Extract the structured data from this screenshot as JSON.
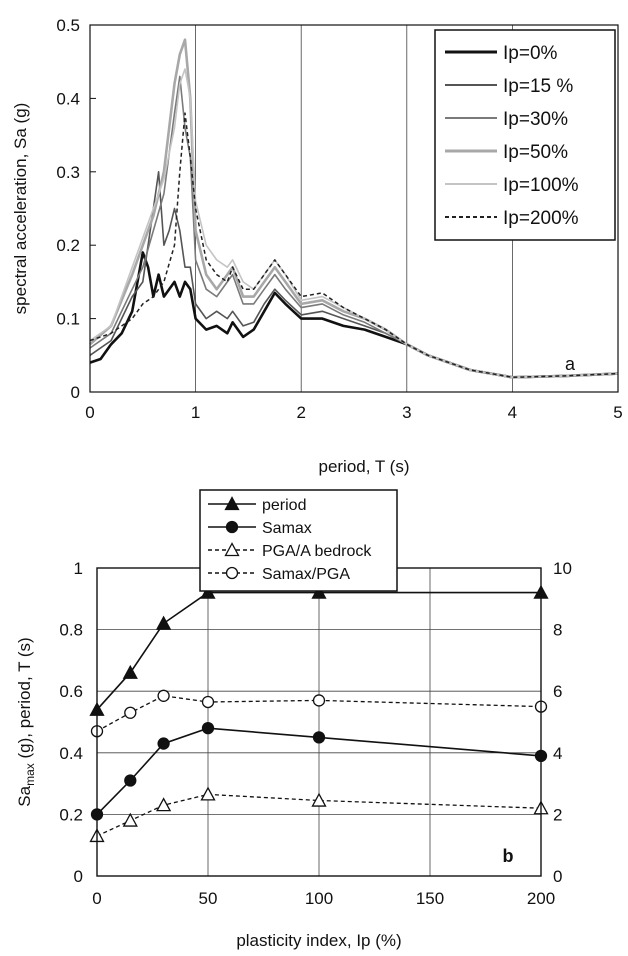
{
  "chart_data": [
    {
      "id": "a",
      "type": "line",
      "panel_label": "a",
      "title": "",
      "xlabel": "period, T (s)",
      "ylabel": "spectral acceleration, Sa (g)",
      "xlim": [
        0,
        5
      ],
      "ylim": [
        0,
        0.5
      ],
      "xticks": [
        "0",
        "1",
        "2",
        "3",
        "4",
        "5"
      ],
      "yticks": [
        "0",
        "0.1",
        "0.2",
        "0.3",
        "0.4",
        "0.5"
      ],
      "grid": "vertical",
      "legend_position": "top-right",
      "series": [
        {
          "name": "Ip=0%",
          "color": "#111111",
          "style": "solid-thick",
          "points": [
            [
              0,
              0.04
            ],
            [
              0.1,
              0.045
            ],
            [
              0.2,
              0.065
            ],
            [
              0.3,
              0.08
            ],
            [
              0.4,
              0.11
            ],
            [
              0.5,
              0.19
            ],
            [
              0.55,
              0.17
            ],
            [
              0.6,
              0.13
            ],
            [
              0.65,
              0.16
            ],
            [
              0.7,
              0.13
            ],
            [
              0.75,
              0.14
            ],
            [
              0.8,
              0.15
            ],
            [
              0.85,
              0.13
            ],
            [
              0.9,
              0.15
            ],
            [
              0.95,
              0.14
            ],
            [
              1.0,
              0.1
            ],
            [
              1.1,
              0.085
            ],
            [
              1.2,
              0.09
            ],
            [
              1.3,
              0.08
            ],
            [
              1.35,
              0.095
            ],
            [
              1.45,
              0.075
            ],
            [
              1.55,
              0.085
            ],
            [
              1.65,
              0.11
            ],
            [
              1.75,
              0.135
            ],
            [
              1.85,
              0.12
            ],
            [
              2.0,
              0.1
            ],
            [
              2.2,
              0.1
            ],
            [
              2.4,
              0.09
            ],
            [
              2.6,
              0.085
            ],
            [
              2.8,
              0.075
            ],
            [
              3.0,
              0.065
            ],
            [
              3.2,
              0.05
            ],
            [
              3.4,
              0.04
            ],
            [
              3.6,
              0.03
            ],
            [
              3.8,
              0.025
            ],
            [
              4.0,
              0.02
            ],
            [
              4.5,
              0.022
            ],
            [
              5.0,
              0.025
            ]
          ]
        },
        {
          "name": "Ip=15 %",
          "color": "#555555",
          "style": "solid",
          "points": [
            [
              0,
              0.05
            ],
            [
              0.2,
              0.07
            ],
            [
              0.4,
              0.13
            ],
            [
              0.5,
              0.15
            ],
            [
              0.6,
              0.25
            ],
            [
              0.65,
              0.3
            ],
            [
              0.7,
              0.2
            ],
            [
              0.75,
              0.22
            ],
            [
              0.8,
              0.25
            ],
            [
              0.85,
              0.22
            ],
            [
              0.9,
              0.17
            ],
            [
              0.95,
              0.17
            ],
            [
              1.0,
              0.12
            ],
            [
              1.1,
              0.1
            ],
            [
              1.2,
              0.11
            ],
            [
              1.3,
              0.1
            ],
            [
              1.35,
              0.11
            ],
            [
              1.45,
              0.09
            ],
            [
              1.55,
              0.095
            ],
            [
              1.65,
              0.12
            ],
            [
              1.75,
              0.14
            ],
            [
              1.85,
              0.125
            ],
            [
              2.0,
              0.105
            ],
            [
              2.2,
              0.11
            ],
            [
              2.4,
              0.1
            ],
            [
              2.6,
              0.09
            ],
            [
              2.8,
              0.08
            ],
            [
              3.0,
              0.065
            ],
            [
              3.2,
              0.05
            ],
            [
              3.4,
              0.04
            ],
            [
              3.6,
              0.03
            ],
            [
              3.8,
              0.025
            ],
            [
              4.0,
              0.02
            ],
            [
              4.5,
              0.022
            ],
            [
              5.0,
              0.025
            ]
          ]
        },
        {
          "name": "Ip=30%",
          "color": "#7a7a7a",
          "style": "solid",
          "points": [
            [
              0,
              0.06
            ],
            [
              0.2,
              0.08
            ],
            [
              0.4,
              0.14
            ],
            [
              0.5,
              0.17
            ],
            [
              0.6,
              0.22
            ],
            [
              0.7,
              0.27
            ],
            [
              0.8,
              0.38
            ],
            [
              0.85,
              0.43
            ],
            [
              0.9,
              0.36
            ],
            [
              0.95,
              0.32
            ],
            [
              1.0,
              0.18
            ],
            [
              1.1,
              0.14
            ],
            [
              1.2,
              0.13
            ],
            [
              1.3,
              0.15
            ],
            [
              1.35,
              0.16
            ],
            [
              1.45,
              0.12
            ],
            [
              1.55,
              0.12
            ],
            [
              1.65,
              0.14
            ],
            [
              1.75,
              0.16
            ],
            [
              1.85,
              0.14
            ],
            [
              2.0,
              0.115
            ],
            [
              2.2,
              0.12
            ],
            [
              2.4,
              0.105
            ],
            [
              2.6,
              0.095
            ],
            [
              2.8,
              0.08
            ],
            [
              3.0,
              0.065
            ],
            [
              3.2,
              0.05
            ],
            [
              3.4,
              0.04
            ],
            [
              3.6,
              0.03
            ],
            [
              3.8,
              0.025
            ],
            [
              4.0,
              0.02
            ],
            [
              4.5,
              0.022
            ],
            [
              5.0,
              0.025
            ]
          ]
        },
        {
          "name": "Ip=50%",
          "color": "#a8a8a8",
          "style": "solid-thick",
          "points": [
            [
              0,
              0.065
            ],
            [
              0.2,
              0.09
            ],
            [
              0.4,
              0.16
            ],
            [
              0.5,
              0.2
            ],
            [
              0.6,
              0.24
            ],
            [
              0.7,
              0.3
            ],
            [
              0.8,
              0.42
            ],
            [
              0.85,
              0.46
            ],
            [
              0.9,
              0.48
            ],
            [
              0.95,
              0.4
            ],
            [
              1.0,
              0.22
            ],
            [
              1.1,
              0.16
            ],
            [
              1.2,
              0.14
            ],
            [
              1.3,
              0.16
            ],
            [
              1.35,
              0.17
            ],
            [
              1.45,
              0.13
            ],
            [
              1.55,
              0.13
            ],
            [
              1.65,
              0.15
            ],
            [
              1.75,
              0.17
            ],
            [
              1.85,
              0.15
            ],
            [
              2.0,
              0.12
            ],
            [
              2.2,
              0.125
            ],
            [
              2.4,
              0.11
            ],
            [
              2.6,
              0.1
            ],
            [
              2.8,
              0.085
            ],
            [
              3.0,
              0.065
            ],
            [
              3.2,
              0.05
            ],
            [
              3.4,
              0.04
            ],
            [
              3.6,
              0.03
            ],
            [
              3.8,
              0.025
            ],
            [
              4.0,
              0.02
            ],
            [
              4.5,
              0.022
            ],
            [
              5.0,
              0.025
            ]
          ]
        },
        {
          "name": "Ip=100%",
          "color": "#c4c4c4",
          "style": "solid",
          "points": [
            [
              0,
              0.07
            ],
            [
              0.2,
              0.09
            ],
            [
              0.4,
              0.17
            ],
            [
              0.5,
              0.21
            ],
            [
              0.6,
              0.25
            ],
            [
              0.7,
              0.29
            ],
            [
              0.8,
              0.36
            ],
            [
              0.85,
              0.42
            ],
            [
              0.9,
              0.44
            ],
            [
              0.95,
              0.4
            ],
            [
              1.0,
              0.26
            ],
            [
              1.1,
              0.2
            ],
            [
              1.2,
              0.18
            ],
            [
              1.3,
              0.17
            ],
            [
              1.35,
              0.18
            ],
            [
              1.45,
              0.15
            ],
            [
              1.55,
              0.14
            ],
            [
              1.65,
              0.16
            ],
            [
              1.75,
              0.18
            ],
            [
              1.85,
              0.16
            ],
            [
              2.0,
              0.125
            ],
            [
              2.2,
              0.13
            ],
            [
              2.4,
              0.115
            ],
            [
              2.6,
              0.1
            ],
            [
              2.8,
              0.085
            ],
            [
              3.0,
              0.065
            ],
            [
              3.2,
              0.05
            ],
            [
              3.4,
              0.04
            ],
            [
              3.6,
              0.03
            ],
            [
              3.8,
              0.025
            ],
            [
              4.0,
              0.02
            ],
            [
              4.5,
              0.022
            ],
            [
              5.0,
              0.025
            ]
          ]
        },
        {
          "name": "Ip=200%",
          "color": "#222222",
          "style": "dashed",
          "points": [
            [
              0,
              0.07
            ],
            [
              0.2,
              0.08
            ],
            [
              0.4,
              0.1
            ],
            [
              0.5,
              0.12
            ],
            [
              0.6,
              0.13
            ],
            [
              0.7,
              0.15
            ],
            [
              0.8,
              0.2
            ],
            [
              0.85,
              0.3
            ],
            [
              0.9,
              0.38
            ],
            [
              0.95,
              0.32
            ],
            [
              1.0,
              0.25
            ],
            [
              1.1,
              0.18
            ],
            [
              1.2,
              0.16
            ],
            [
              1.3,
              0.15
            ],
            [
              1.35,
              0.17
            ],
            [
              1.45,
              0.14
            ],
            [
              1.55,
              0.14
            ],
            [
              1.65,
              0.16
            ],
            [
              1.75,
              0.18
            ],
            [
              1.85,
              0.16
            ],
            [
              2.0,
              0.13
            ],
            [
              2.2,
              0.135
            ],
            [
              2.4,
              0.115
            ],
            [
              2.6,
              0.1
            ],
            [
              2.8,
              0.085
            ],
            [
              3.0,
              0.065
            ],
            [
              3.2,
              0.05
            ],
            [
              3.4,
              0.04
            ],
            [
              3.6,
              0.03
            ],
            [
              3.8,
              0.025
            ],
            [
              4.0,
              0.02
            ],
            [
              4.5,
              0.022
            ],
            [
              5.0,
              0.025
            ]
          ]
        }
      ]
    },
    {
      "id": "b",
      "type": "line",
      "panel_label": "b",
      "title": "",
      "xlabel": "plasticity index, Ip (%)",
      "ylabel": "Sa_max (g), period, T (s)",
      "ylabel_main": "Sa",
      "ylabel_sub": "max",
      "ylabel_rest": " (g), period, T (s)",
      "xlim": [
        0,
        200
      ],
      "ylim": [
        0,
        1
      ],
      "y2lim": [
        0,
        10
      ],
      "xticks": [
        "0",
        "50",
        "100",
        "150",
        "200"
      ],
      "yticks": [
        "0",
        "0.2",
        "0.4",
        "0.6",
        "0.8",
        "1"
      ],
      "y2ticks": [
        "0",
        "2",
        "4",
        "6",
        "8",
        "10"
      ],
      "grid": true,
      "legend_position": "top-center (above plot)",
      "series": [
        {
          "name": "period",
          "axis": "left",
          "marker": "filled-triangle",
          "style": "solid",
          "x": [
            0,
            15,
            30,
            50,
            100,
            200
          ],
          "values": [
            0.54,
            0.66,
            0.82,
            0.92,
            0.92,
            0.92
          ]
        },
        {
          "name": "Samax",
          "axis": "left",
          "marker": "filled-circle",
          "style": "solid",
          "x": [
            0,
            15,
            30,
            50,
            100,
            200
          ],
          "values": [
            0.2,
            0.31,
            0.43,
            0.48,
            0.45,
            0.39
          ]
        },
        {
          "name": "PGA/A bedrock",
          "axis": "right",
          "marker": "open-triangle",
          "style": "dashed",
          "x": [
            0,
            15,
            30,
            50,
            100,
            200
          ],
          "values": [
            1.3,
            1.8,
            2.3,
            2.65,
            2.45,
            2.2
          ]
        },
        {
          "name": "Samax/PGA",
          "axis": "right",
          "marker": "open-circle",
          "style": "dashed",
          "x": [
            0,
            15,
            30,
            50,
            100,
            200
          ],
          "values": [
            4.7,
            5.3,
            5.85,
            5.65,
            5.7,
            5.5
          ]
        }
      ]
    }
  ]
}
